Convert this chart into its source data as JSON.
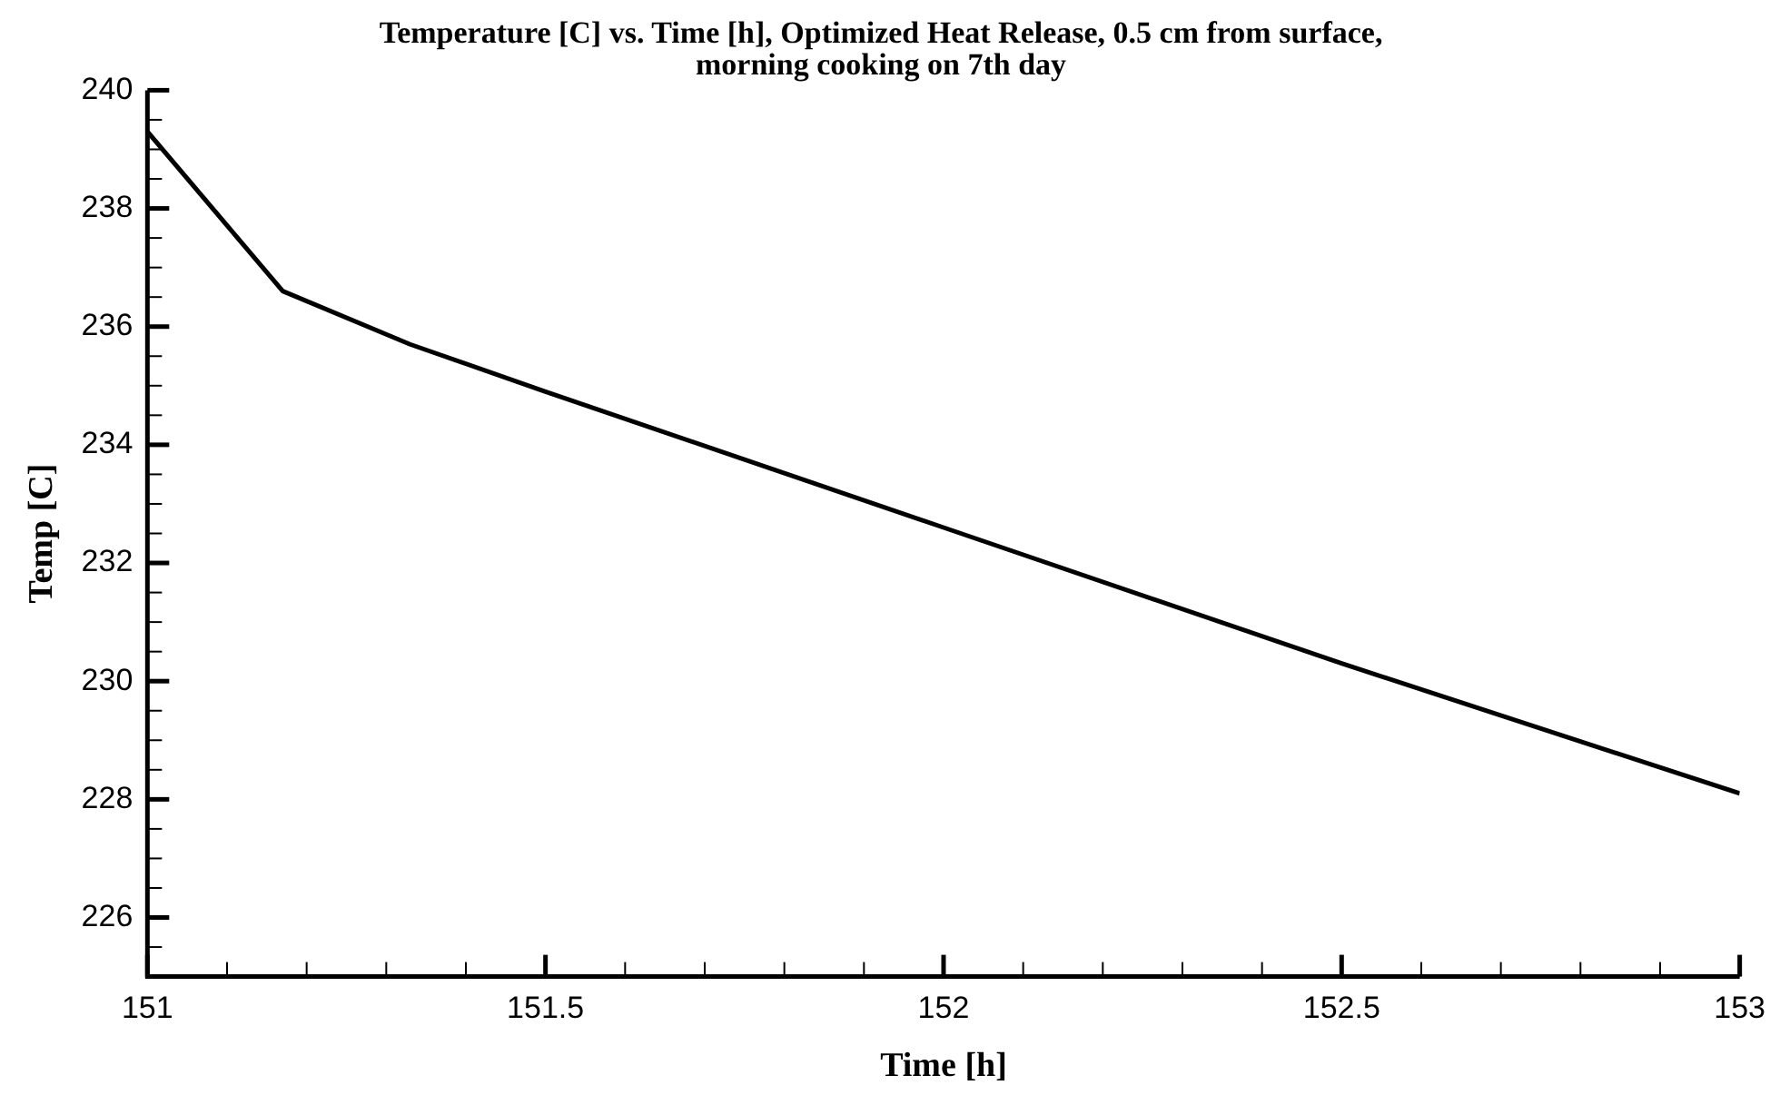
{
  "chart_data": {
    "type": "line",
    "title": "Temperature [C] vs. Time [h], Optimized Heat Release, 0.5 cm from surface, morning cooking on 7th day",
    "xlabel": "Time [h]",
    "ylabel": "Temp [C]",
    "x": [
      151,
      151.17,
      151.33,
      151.5,
      152,
      152.5,
      153
    ],
    "series": [
      {
        "color": "#000000",
        "values": [
          239.3,
          236.6,
          235.7,
          234.9,
          232.6,
          230.3,
          228.1
        ]
      }
    ],
    "xlim": [
      151,
      153
    ],
    "ylim": [
      225,
      240
    ],
    "xticks": [
      151,
      {
        "value": 151.1,
        "label": null
      },
      {
        "value": 151.2,
        "label": null
      },
      {
        "value": 151.3,
        "label": null
      },
      {
        "value": 151.4,
        "label": null
      },
      151.5,
      {
        "value": 151.6,
        "label": null
      },
      {
        "value": 151.7,
        "label": null
      },
      {
        "value": 151.8,
        "label": null
      },
      {
        "value": 151.9,
        "label": null
      },
      152,
      {
        "value": 152.1,
        "label": null
      },
      {
        "value": 152.2,
        "label": null
      },
      {
        "value": 152.3,
        "label": null
      },
      {
        "value": 152.4,
        "label": null
      },
      152.5,
      {
        "value": 152.6,
        "label": null
      },
      {
        "value": 152.7,
        "label": null
      },
      {
        "value": 152.8,
        "label": null
      },
      {
        "value": 152.9,
        "label": null
      },
      153
    ],
    "yticks": [
      {
        "value": 225.5,
        "label": null
      },
      226,
      {
        "value": 226.5,
        "label": null
      },
      {
        "value": 227,
        "label": null
      },
      {
        "value": 227.5,
        "label": null
      },
      228,
      {
        "value": 228.5,
        "label": null
      },
      {
        "value": 229,
        "label": null
      },
      {
        "value": 229.5,
        "label": null
      },
      230,
      {
        "value": 230.5,
        "label": null
      },
      {
        "value": 231,
        "label": null
      },
      {
        "value": 231.5,
        "label": null
      },
      232,
      {
        "value": 232.5,
        "label": null
      },
      {
        "value": 233,
        "label": null
      },
      {
        "value": 233.5,
        "label": null
      },
      234,
      {
        "value": 234.5,
        "label": null
      },
      {
        "value": 235,
        "label": null
      },
      {
        "value": 235.5,
        "label": null
      },
      236,
      {
        "value": 236.5,
        "label": null
      },
      {
        "value": 237,
        "label": null
      },
      {
        "value": 237.5,
        "label": null
      },
      238,
      {
        "value": 238.5,
        "label": null
      },
      {
        "value": 239,
        "label": null
      },
      {
        "value": 239.5,
        "label": null
      },
      240
    ],
    "grid": false,
    "legend": false,
    "marker": "none",
    "line_style": "solid"
  }
}
